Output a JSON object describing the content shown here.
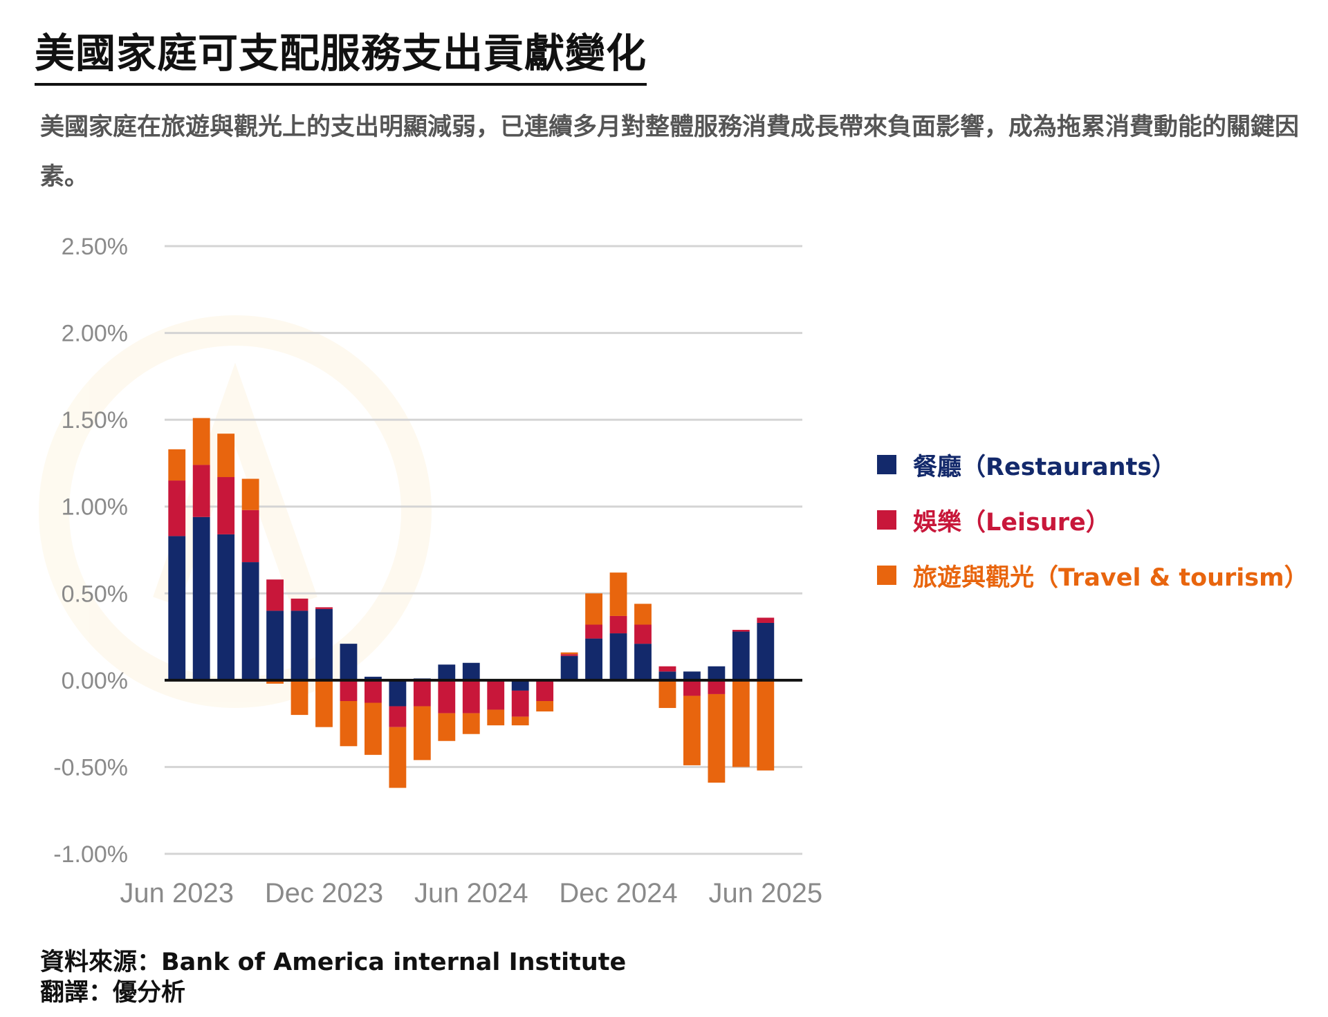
{
  "title": "美國家庭可支配服務支出貢獻變化",
  "subtitle": "美國家庭在旅遊與觀光上的支出明顯減弱，已連續多月對整體服務消費成長帶來負面影響，成為拖累消費動能的關鍵因素。",
  "source_line": "資料來源：Bank of America internal Institute",
  "translation_line": "翻譯：優分析",
  "colors": {
    "restaurants": "#13296b",
    "leisure": "#c8173a",
    "travel": "#e8650e"
  },
  "chart_data": {
    "type": "bar",
    "stacked": true,
    "x_tick_labels": [
      "Jun 2023",
      "Dec 2023",
      "Jun 2024",
      "Dec 2024",
      "Jun 2025"
    ],
    "y_tick_labels": [
      "2.50%",
      "2.00%",
      "1.50%",
      "1.00%",
      "0.50%",
      "0.00%",
      "-0.50%",
      "-1.00%"
    ],
    "ylim": [
      -1.0,
      2.5
    ],
    "grid": true,
    "legend_position": "right",
    "categories": [
      "2023-06",
      "2023-07",
      "2023-08",
      "2023-09",
      "2023-10",
      "2023-11",
      "2023-12",
      "2024-01",
      "2024-02",
      "2024-03",
      "2024-04",
      "2024-05",
      "2024-06",
      "2024-07",
      "2024-08",
      "2024-09",
      "2024-10",
      "2024-11",
      "2024-12",
      "2025-01",
      "2025-02",
      "2025-03",
      "2025-04",
      "2025-05",
      "2025-06",
      "2025-07"
    ],
    "series": [
      {
        "name": "餐廳（Restaurants）",
        "color_key": "restaurants",
        "values": [
          0.83,
          0.94,
          0.84,
          0.68,
          0.4,
          0.4,
          0.41,
          0.21,
          0.02,
          -0.15,
          0.01,
          0.09,
          0.1,
          0.0,
          -0.06,
          0.0,
          0.14,
          0.24,
          0.27,
          0.21,
          0.05,
          0.05,
          0.08,
          0.28,
          0.33,
          0.0
        ]
      },
      {
        "name": "娛樂（Leisure）",
        "color_key": "leisure",
        "values": [
          0.32,
          0.3,
          0.33,
          0.3,
          0.18,
          0.07,
          0.01,
          -0.12,
          -0.13,
          -0.12,
          -0.15,
          -0.19,
          -0.19,
          -0.17,
          -0.15,
          -0.12,
          0.01,
          0.08,
          0.1,
          0.11,
          0.03,
          -0.09,
          -0.08,
          0.01,
          0.03,
          0.0
        ]
      },
      {
        "name": "旅遊與觀光（Travel & tourism）",
        "color_key": "travel",
        "values": [
          0.18,
          0.27,
          0.25,
          0.18,
          -0.02,
          -0.2,
          -0.27,
          -0.26,
          -0.3,
          -0.35,
          -0.31,
          -0.16,
          -0.12,
          -0.09,
          -0.05,
          -0.06,
          0.01,
          0.18,
          0.25,
          0.12,
          -0.16,
          -0.4,
          -0.51,
          -0.5,
          -0.52,
          0.0
        ]
      }
    ]
  }
}
